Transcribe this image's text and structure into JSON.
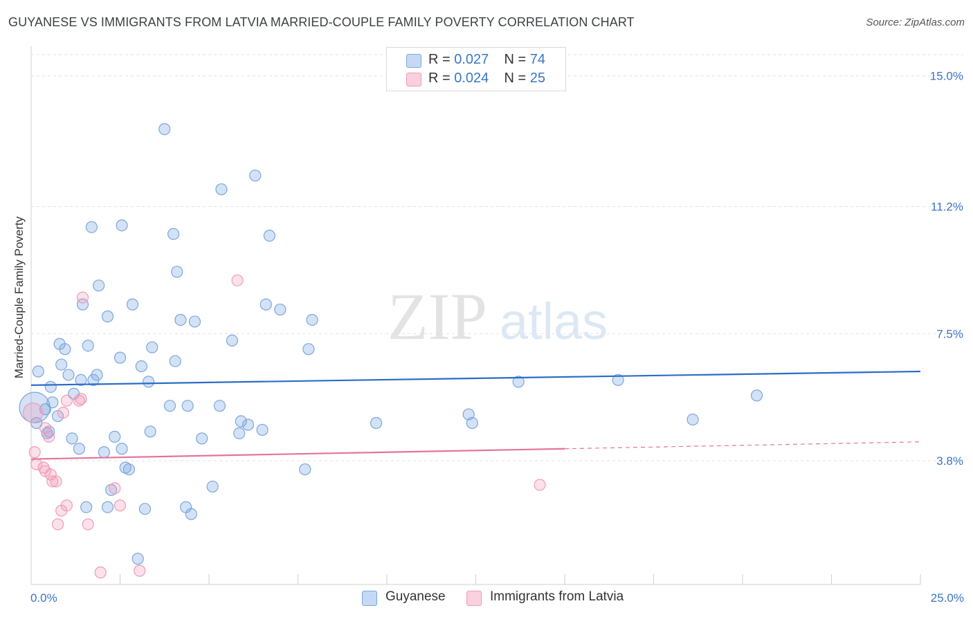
{
  "title": "GUYANESE VS IMMIGRANTS FROM LATVIA MARRIED-COUPLE FAMILY POVERTY CORRELATION CHART",
  "source": "Source: ZipAtlas.com",
  "watermark": {
    "zip": "ZIP",
    "atlas": "atlas"
  },
  "legend_top": {
    "rows": [
      {
        "r_label": "R = ",
        "r_value": "0.027",
        "n_label": "N = ",
        "n_value": "74"
      },
      {
        "r_label": "R = ",
        "r_value": "0.024",
        "n_label": "N = ",
        "n_value": "25"
      }
    ]
  },
  "legend_bottom": {
    "guyanese": "Guyanese",
    "latvia": "Immigrants from Latvia"
  },
  "chart_data": {
    "type": "scatter",
    "title": "GUYANESE VS IMMIGRANTS FROM LATVIA MARRIED-COUPLE FAMILY POVERTY CORRELATION CHART",
    "xlabel": "",
    "ylabel": "Married-Couple Family Poverty",
    "xlim": [
      0,
      25
    ],
    "ylim": [
      0.2,
      15.8
    ],
    "x_tick_labels": [
      "0.0%",
      "25.0%"
    ],
    "y_ticks": [
      3.8,
      7.5,
      11.2,
      15.0
    ],
    "y_tick_labels": [
      "3.8%",
      "7.5%",
      "11.2%",
      "15.0%"
    ],
    "colors": {
      "blue": "#7aa6e0",
      "blue_line": "#2a6cc8",
      "pink": "#f19ab6",
      "pink_line": "#e4739a"
    },
    "series": [
      {
        "name": "Guyanese",
        "color": "#7aa6e0",
        "trend": {
          "x0": 0,
          "y0": 6.0,
          "x1": 25,
          "y1": 6.4,
          "solid_to": 25
        },
        "points": [
          [
            3.75,
            13.45
          ],
          [
            6.3,
            12.1
          ],
          [
            5.35,
            11.7
          ],
          [
            1.7,
            10.6
          ],
          [
            2.55,
            10.65
          ],
          [
            4.0,
            10.4
          ],
          [
            6.7,
            10.35
          ],
          [
            4.1,
            9.3
          ],
          [
            1.9,
            8.9
          ],
          [
            1.45,
            8.35
          ],
          [
            2.15,
            8.0
          ],
          [
            2.85,
            8.35
          ],
          [
            6.6,
            8.35
          ],
          [
            7.0,
            8.2
          ],
          [
            4.2,
            7.9
          ],
          [
            4.6,
            7.85
          ],
          [
            7.9,
            7.9
          ],
          [
            0.8,
            7.2
          ],
          [
            0.95,
            7.05
          ],
          [
            1.6,
            7.15
          ],
          [
            3.4,
            7.1
          ],
          [
            5.65,
            7.3
          ],
          [
            7.8,
            7.05
          ],
          [
            0.2,
            6.4
          ],
          [
            0.85,
            6.6
          ],
          [
            2.5,
            6.8
          ],
          [
            3.1,
            6.55
          ],
          [
            4.05,
            6.7
          ],
          [
            1.05,
            6.3
          ],
          [
            1.4,
            6.15
          ],
          [
            1.85,
            6.3
          ],
          [
            1.75,
            6.15
          ],
          [
            3.3,
            6.1
          ],
          [
            0.55,
            5.95
          ],
          [
            1.2,
            5.75
          ],
          [
            0.6,
            5.5
          ],
          [
            0.4,
            5.3
          ],
          [
            0.75,
            5.1
          ],
          [
            3.9,
            5.4
          ],
          [
            4.4,
            5.4
          ],
          [
            5.3,
            5.4
          ],
          [
            5.9,
            4.95
          ],
          [
            6.1,
            4.85
          ],
          [
            6.5,
            4.7
          ],
          [
            9.7,
            4.9
          ],
          [
            12.3,
            5.15
          ],
          [
            12.4,
            4.9
          ],
          [
            13.7,
            6.1
          ],
          [
            16.5,
            6.15
          ],
          [
            18.6,
            5.0
          ],
          [
            20.4,
            5.7
          ],
          [
            0.15,
            4.9
          ],
          [
            0.45,
            4.6
          ],
          [
            0.5,
            4.65
          ],
          [
            1.15,
            4.45
          ],
          [
            2.35,
            4.5
          ],
          [
            3.35,
            4.65
          ],
          [
            4.8,
            4.45
          ],
          [
            5.85,
            4.6
          ],
          [
            1.35,
            4.15
          ],
          [
            2.05,
            4.05
          ],
          [
            2.55,
            4.15
          ],
          [
            2.65,
            3.6
          ],
          [
            2.75,
            3.55
          ],
          [
            7.7,
            3.55
          ],
          [
            2.25,
            2.95
          ],
          [
            5.1,
            3.05
          ],
          [
            1.55,
            2.45
          ],
          [
            2.15,
            2.45
          ],
          [
            3.2,
            2.4
          ],
          [
            4.35,
            2.45
          ],
          [
            4.5,
            2.25
          ],
          [
            3.0,
            0.95
          ],
          [
            0.1,
            5.35
          ]
        ]
      },
      {
        "name": "Immigrants from Latvia",
        "color": "#f19ab6",
        "trend": {
          "x0": 0,
          "y0": 3.85,
          "x1": 25,
          "y1": 4.35,
          "solid_to": 15
        },
        "points": [
          [
            5.8,
            9.05
          ],
          [
            1.45,
            8.55
          ],
          [
            0.9,
            5.2
          ],
          [
            1.0,
            5.55
          ],
          [
            1.35,
            5.55
          ],
          [
            1.4,
            5.6
          ],
          [
            0.4,
            4.75
          ],
          [
            0.5,
            4.5
          ],
          [
            0.1,
            4.05
          ],
          [
            0.15,
            3.7
          ],
          [
            0.35,
            3.6
          ],
          [
            0.4,
            3.5
          ],
          [
            0.55,
            3.4
          ],
          [
            0.6,
            3.2
          ],
          [
            0.7,
            3.2
          ],
          [
            14.3,
            3.1
          ],
          [
            2.35,
            3.0
          ],
          [
            1.0,
            2.5
          ],
          [
            2.5,
            2.5
          ],
          [
            0.85,
            2.35
          ],
          [
            0.75,
            1.95
          ],
          [
            1.6,
            1.95
          ],
          [
            1.95,
            0.55
          ],
          [
            3.05,
            0.6
          ],
          [
            0.05,
            5.2
          ]
        ]
      }
    ]
  }
}
